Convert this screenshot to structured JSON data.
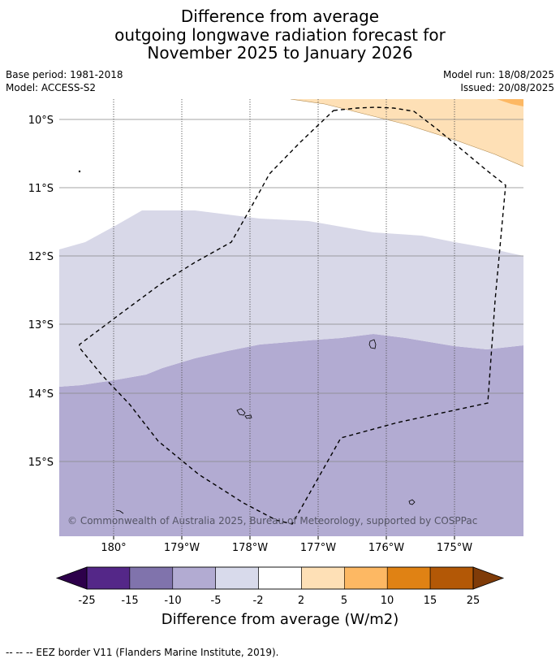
{
  "title": {
    "line1": "Difference from average",
    "line2": "outgoing longwave radiation forecast for",
    "line3": "November 2025 to January 2026"
  },
  "meta": {
    "base_period": "Base period: 1981-2018",
    "model": "Model: ACCESS-S2",
    "model_run": "Model run: 18/08/2025",
    "issued": "Issued: 20/08/2025"
  },
  "map": {
    "lat_labels": [
      "10°S",
      "11°S",
      "12°S",
      "13°S",
      "14°S",
      "15°S"
    ],
    "lon_labels": [
      "180°",
      "179°W",
      "178°W",
      "177°W",
      "176°W",
      "175°W"
    ],
    "copyright": "© Commonwealth of Australia 2025, Bureau of Meteorology, supported by COSPPac",
    "colors": {
      "band_-10_-5": "#b2abd2",
      "band_-5_-2": "#d8d8e8",
      "band_2_5": "#fee0b6",
      "band_5_10": "#fdb863",
      "gridline": "#888888",
      "eez_border": "#000000"
    }
  },
  "colorbar": {
    "ticks": [
      "-25",
      "-15",
      "-10",
      "-5",
      "-2",
      "2",
      "5",
      "10",
      "15",
      "25"
    ],
    "colors": [
      "#542788",
      "#8073ac",
      "#b2abd2",
      "#d8daeb",
      "#ffffff",
      "#fee0b6",
      "#fdb863",
      "#e08214",
      "#b35806"
    ],
    "under_color": "#2d004b",
    "over_color": "#7f3b08",
    "label": "Difference from average (W/m2)"
  },
  "footer": "--  --  -- EEZ border V11 (Flanders Marine Institute, 2019)."
}
